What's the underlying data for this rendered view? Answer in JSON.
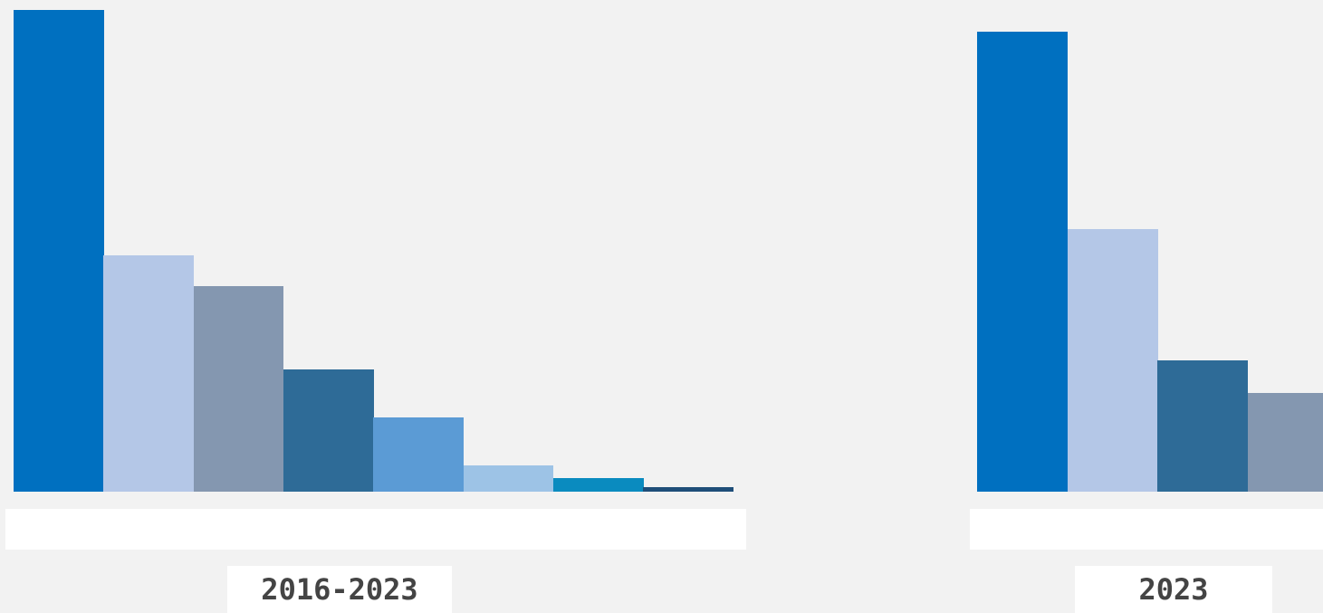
{
  "chart_data": [
    {
      "type": "bar",
      "title": "",
      "caption": "2016-2023",
      "values": [
        110,
        54,
        47,
        28,
        17,
        6,
        3,
        1
      ],
      "value_labels": [
        "110",
        "54",
        "47",
        "28",
        "17",
        "6",
        "3",
        "1"
      ],
      "colors": [
        "#0070c0",
        "#b4c7e7",
        "#8497b0",
        "#2e6b97",
        "#5b9bd5",
        "#9dc3e6",
        "#0a8bbf",
        "#1f4e79"
      ],
      "ylim": [
        0,
        110
      ],
      "grid": false,
      "legend": "none"
    },
    {
      "type": "bar",
      "title": "",
      "caption": "2023",
      "values": [
        14,
        8,
        4,
        3
      ],
      "value_labels": [
        "14",
        "8",
        "4",
        "3"
      ],
      "colors": [
        "#0070c0",
        "#b4c7e7",
        "#2e6b97",
        "#8497b0"
      ],
      "ylim": [
        0,
        14
      ],
      "grid": false,
      "legend": "none"
    }
  ]
}
